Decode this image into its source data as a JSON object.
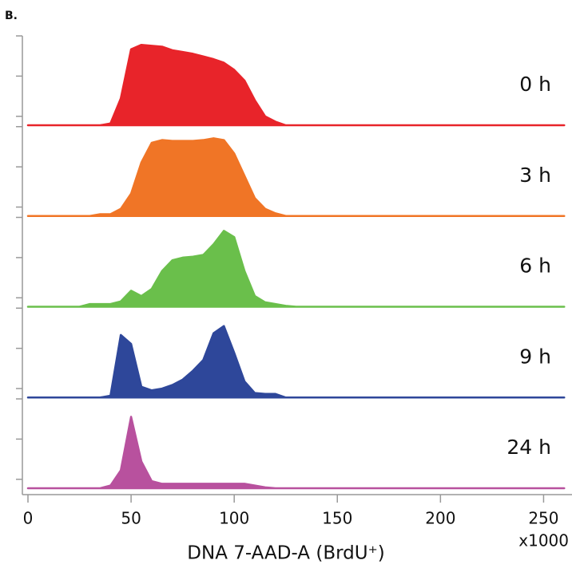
{
  "chart_data": {
    "type": "ridgeline",
    "panel_label": "B.",
    "x_label": "DNA 7-AAD-A (BrdU⁺)",
    "x_multiplier": "x1000",
    "xlim": [
      0,
      263
    ],
    "xticks": [
      0,
      50,
      100,
      150,
      200,
      250
    ],
    "ylim": [
      0,
      100
    ],
    "yticks": [
      10,
      55,
      100
    ],
    "x": [
      0,
      25,
      30,
      35,
      40,
      45,
      50,
      55,
      60,
      65,
      70,
      75,
      80,
      85,
      90,
      95,
      100,
      105,
      110,
      115,
      120,
      125,
      130,
      260
    ],
    "series": [
      {
        "name": "0 h",
        "color": "#e8242a",
        "values": [
          0,
          0,
          0,
          0,
          2,
          30,
          85,
          90,
          89,
          88,
          84,
          82,
          80,
          77,
          74,
          70,
          62,
          50,
          28,
          10,
          4,
          0,
          0,
          0
        ]
      },
      {
        "name": "3 h",
        "color": "#f07526",
        "values": [
          0,
          0,
          0,
          2,
          2,
          8,
          25,
          60,
          82,
          85,
          84,
          84,
          84,
          85,
          87,
          85,
          70,
          45,
          20,
          8,
          3,
          0,
          0,
          0
        ]
      },
      {
        "name": "6 h",
        "color": "#6abf4b",
        "values": [
          0,
          0,
          3,
          3,
          3,
          6,
          18,
          12,
          20,
          40,
          52,
          55,
          56,
          58,
          70,
          85,
          78,
          40,
          12,
          5,
          3,
          1,
          0,
          0
        ]
      },
      {
        "name": "9 h",
        "color": "#2e479a",
        "values": [
          0,
          0,
          0,
          0,
          2,
          70,
          60,
          12,
          8,
          10,
          14,
          20,
          30,
          42,
          72,
          80,
          50,
          18,
          5,
          4,
          4,
          0,
          0,
          0
        ]
      },
      {
        "name": "24 h",
        "color": "#b8519e",
        "values": [
          0,
          0,
          0,
          0,
          3,
          20,
          80,
          30,
          8,
          5,
          5,
          5,
          5,
          5,
          5,
          5,
          5,
          5,
          3,
          1,
          0,
          0,
          0,
          0
        ]
      }
    ]
  }
}
